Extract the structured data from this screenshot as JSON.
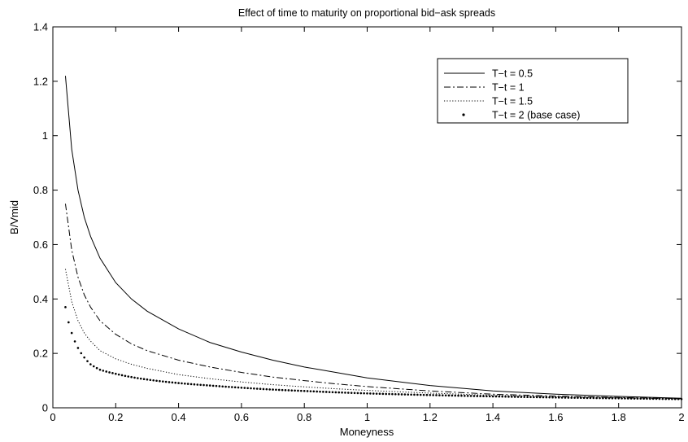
{
  "chart_data": {
    "type": "line",
    "title": "Effect of time to maturity on proportional bid−ask spreads",
    "xlabel": "Moneyness",
    "ylabel": "B/Vmid",
    "xlim": [
      0,
      2
    ],
    "ylim": [
      0,
      1.4
    ],
    "xticks": [
      "0",
      "0.2",
      "0.4",
      "0.6",
      "0.8",
      "1",
      "1.2",
      "1.4",
      "1.6",
      "1.8",
      "2"
    ],
    "yticks": [
      "0",
      "0.2",
      "0.4",
      "0.6",
      "0.8",
      "1",
      "1.2",
      "1.4"
    ],
    "grid": false,
    "legend_position": "top-right",
    "series": [
      {
        "name": "T−t = 0.5",
        "line_style": "solid",
        "x": [
          0.04,
          0.06,
          0.08,
          0.1,
          0.12,
          0.15,
          0.2,
          0.25,
          0.3,
          0.4,
          0.5,
          0.6,
          0.7,
          0.8,
          0.9,
          1.0,
          1.2,
          1.4,
          1.6,
          1.8,
          2.0
        ],
        "y": [
          1.22,
          0.95,
          0.8,
          0.7,
          0.63,
          0.55,
          0.46,
          0.4,
          0.355,
          0.29,
          0.24,
          0.205,
          0.175,
          0.15,
          0.13,
          0.11,
          0.082,
          0.062,
          0.05,
          0.042,
          0.035
        ]
      },
      {
        "name": "T−t = 1",
        "line_style": "dashdot",
        "x": [
          0.04,
          0.06,
          0.08,
          0.1,
          0.12,
          0.15,
          0.2,
          0.25,
          0.3,
          0.4,
          0.5,
          0.6,
          0.7,
          0.8,
          0.9,
          1.0,
          1.2,
          1.4,
          1.6,
          1.8,
          2.0
        ],
        "y": [
          0.75,
          0.58,
          0.48,
          0.415,
          0.37,
          0.32,
          0.27,
          0.235,
          0.21,
          0.175,
          0.15,
          0.13,
          0.113,
          0.1,
          0.088,
          0.078,
          0.062,
          0.05,
          0.043,
          0.038,
          0.034
        ]
      },
      {
        "name": "T−t = 1.5",
        "line_style": "dotted",
        "x": [
          0.04,
          0.06,
          0.08,
          0.1,
          0.12,
          0.15,
          0.2,
          0.25,
          0.3,
          0.4,
          0.5,
          0.6,
          0.7,
          0.8,
          0.9,
          1.0,
          1.2,
          1.4,
          1.6,
          1.8,
          2.0
        ],
        "y": [
          0.51,
          0.39,
          0.32,
          0.275,
          0.245,
          0.21,
          0.18,
          0.16,
          0.145,
          0.122,
          0.107,
          0.095,
          0.085,
          0.077,
          0.07,
          0.064,
          0.054,
          0.046,
          0.041,
          0.037,
          0.033
        ]
      },
      {
        "name": "T−t = 2 (base case)",
        "line_style": "markers",
        "x": [
          0.04,
          0.06,
          0.08,
          0.1,
          0.12,
          0.15,
          0.2,
          0.25,
          0.3,
          0.4,
          0.5,
          0.6,
          0.7,
          0.8,
          0.9,
          1.0,
          1.2,
          1.4,
          1.6,
          1.8,
          2.0
        ],
        "y": [
          0.37,
          0.275,
          0.22,
          0.185,
          0.16,
          0.14,
          0.125,
          0.113,
          0.104,
          0.091,
          0.082,
          0.074,
          0.067,
          0.062,
          0.057,
          0.053,
          0.047,
          0.042,
          0.038,
          0.035,
          0.032
        ]
      }
    ]
  }
}
